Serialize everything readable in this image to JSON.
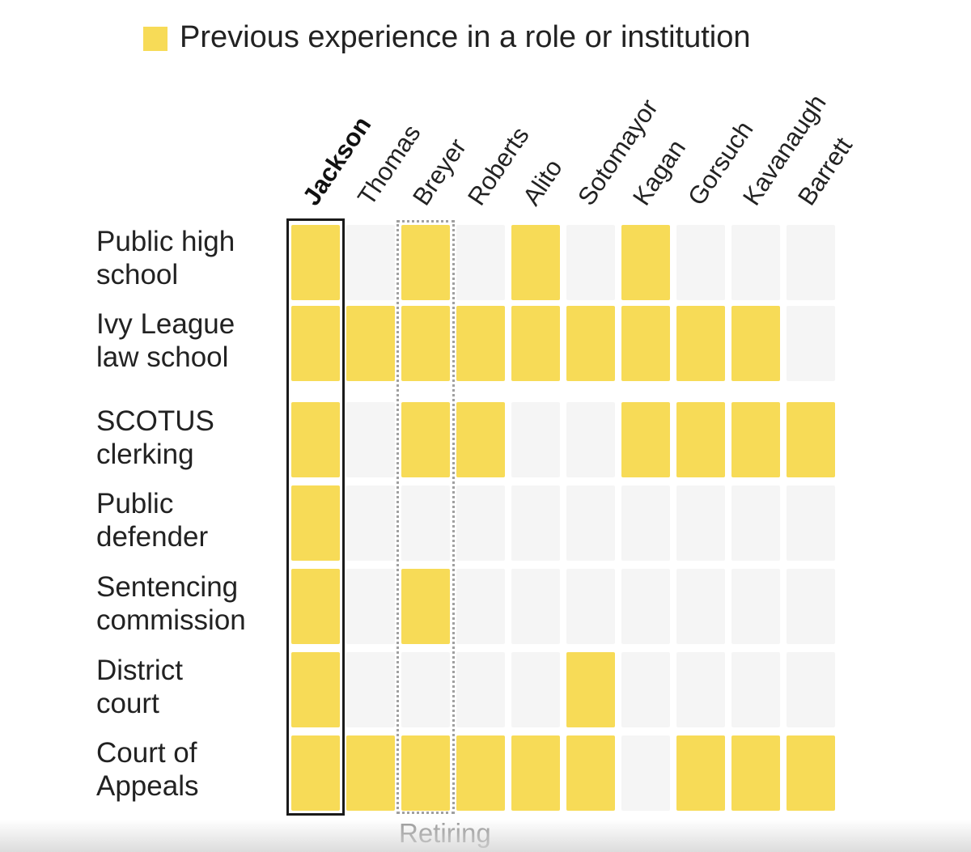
{
  "chart_data": {
    "type": "heatmap",
    "legend": {
      "label": "Previous experience in a role or institution",
      "placement": "top"
    },
    "columns": [
      "Jackson",
      "Thomas",
      "Breyer",
      "Roberts",
      "Alito",
      "Sotomayor",
      "Kagan",
      "Gorsuch",
      "Kavanaugh",
      "Barrett"
    ],
    "highlighted_column": "Jackson",
    "rows": [
      {
        "label_lines": [
          "Public high",
          "school"
        ],
        "values": [
          1,
          0,
          1,
          0,
          1,
          0,
          1,
          0,
          0,
          0
        ]
      },
      {
        "label_lines": [
          "Ivy League",
          "law school"
        ],
        "values": [
          1,
          1,
          1,
          1,
          1,
          1,
          1,
          1,
          1,
          0
        ]
      },
      {
        "label_lines": [
          "SCOTUS",
          "clerking"
        ],
        "values": [
          1,
          0,
          1,
          1,
          0,
          0,
          1,
          1,
          1,
          1
        ]
      },
      {
        "label_lines": [
          "Public",
          "defender"
        ],
        "values": [
          1,
          0,
          0,
          0,
          0,
          0,
          0,
          0,
          0,
          0
        ]
      },
      {
        "label_lines": [
          "Sentencing",
          "commission"
        ],
        "values": [
          1,
          0,
          1,
          0,
          0,
          0,
          0,
          0,
          0,
          0
        ]
      },
      {
        "label_lines": [
          "District",
          "court"
        ],
        "values": [
          1,
          0,
          0,
          0,
          0,
          1,
          0,
          0,
          0,
          0
        ]
      },
      {
        "label_lines": [
          "Court of",
          "Appeals"
        ],
        "values": [
          1,
          1,
          1,
          1,
          1,
          1,
          0,
          1,
          1,
          1
        ]
      }
    ],
    "annotation": {
      "column": "Breyer",
      "label": "Retiring"
    }
  },
  "colors": {
    "filled": "#f7db57",
    "empty": "#f5f5f5",
    "highlight_border": "#1a1a1a",
    "retiring_border": "#a0a0a0"
  }
}
